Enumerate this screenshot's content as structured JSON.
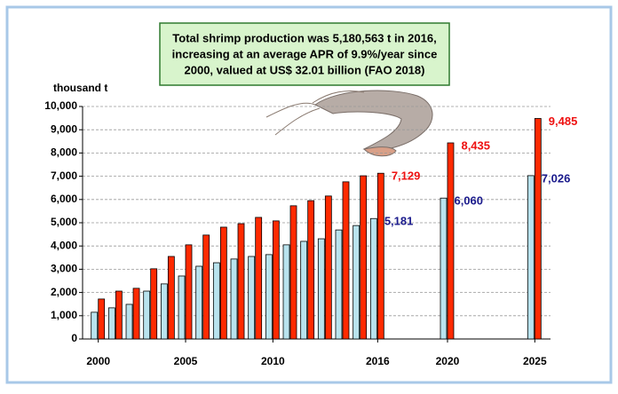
{
  "chart_data": {
    "type": "bar",
    "annotation": [
      "Total shrimp production was 5,180,563 t in 2016,",
      "increasing at an average APR of 9.9%/year since",
      "2000, valued at US$ 32.01 billion (FAO 2018)"
    ],
    "ylabel": "thousand t",
    "x": [
      2000,
      2001,
      2002,
      2003,
      2004,
      2005,
      2006,
      2007,
      2008,
      2009,
      2010,
      2011,
      2012,
      2013,
      2014,
      2015,
      2016,
      2020,
      2025
    ],
    "xlim": [
      1999.1,
      2025.9
    ],
    "xticks": [
      2000,
      2005,
      2010,
      2016,
      2020,
      2025
    ],
    "xtick_colors": [
      "#000000",
      "#000000",
      "#000000",
      "#1f1fa8",
      "#000000",
      "#000000"
    ],
    "ylim": [
      0,
      10000
    ],
    "yticks": [
      0,
      {
        "value": 1000,
        "label": "1,000"
      },
      {
        "value": 2000,
        "label": "2,000"
      },
      {
        "value": 3000,
        "label": "3,000"
      },
      {
        "value": 4000,
        "label": "4,000"
      },
      {
        "value": 5000,
        "label": "5,000"
      },
      {
        "value": 6000,
        "label": "6,000"
      },
      {
        "value": 7000,
        "label": "7,000"
      },
      {
        "value": 8000,
        "label": "8,000"
      },
      {
        "value": 9000,
        "label": "9,000"
      },
      {
        "value": 10000,
        "label": "10,000"
      }
    ],
    "grid": true,
    "series": [
      {
        "color": "#b9e3ee",
        "label_color": "#1a1a8c",
        "values": [
          1150,
          1340,
          1490,
          2060,
          2370,
          2710,
          3130,
          3280,
          3440,
          3550,
          3630,
          4050,
          4200,
          4310,
          4690,
          4880,
          5181,
          6060,
          7026
        ],
        "value_labels": [
          null,
          null,
          null,
          null,
          null,
          null,
          null,
          null,
          null,
          null,
          null,
          null,
          null,
          null,
          null,
          null,
          "5,181",
          "6,060",
          "7,026"
        ]
      },
      {
        "color": "#ff2a00",
        "label_color": "#ee1111",
        "values": [
          1720,
          2060,
          2180,
          3020,
          3550,
          4050,
          4470,
          4810,
          4960,
          5230,
          5080,
          5730,
          5950,
          6150,
          6760,
          7020,
          7129,
          8435,
          9485
        ],
        "value_labels": [
          null,
          null,
          null,
          null,
          null,
          null,
          null,
          null,
          null,
          null,
          null,
          null,
          null,
          null,
          null,
          null,
          "7,129",
          "8,435",
          "9,485"
        ]
      }
    ]
  }
}
